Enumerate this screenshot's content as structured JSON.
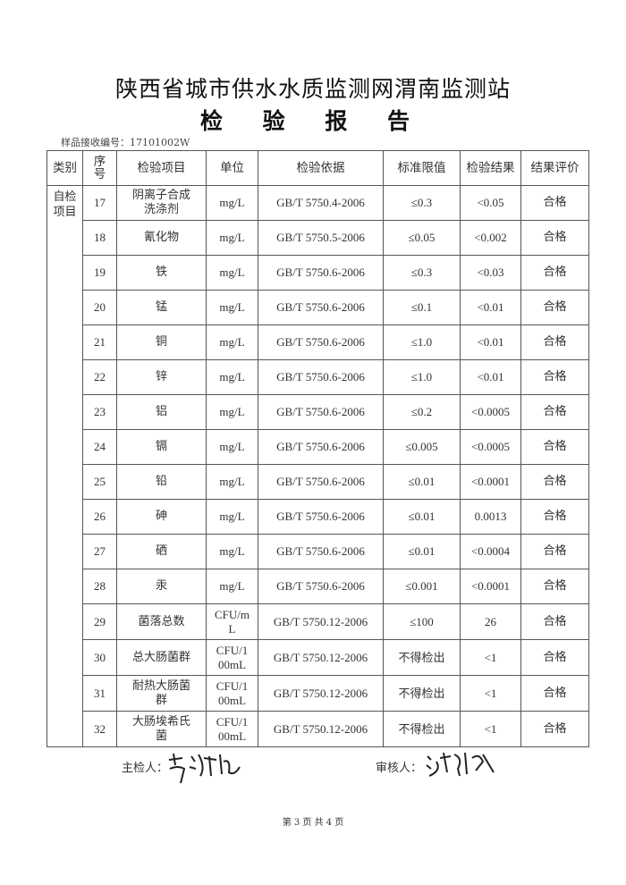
{
  "title": "陕西省城市供水水质监测网渭南监测站",
  "subtitle": "检 验 报 告",
  "sample_label": "样品接收编号：17101002W",
  "headers": [
    "类别",
    "序号",
    "检验项目",
    "单位",
    "检验依据",
    "标准限值",
    "检验结果",
    "结果评价"
  ],
  "category": "自检项目",
  "rows": [
    {
      "no": "17",
      "item": "阴离子合成洗涤剂",
      "unit": "mg/L",
      "method": "GB/T 5750.4-2006",
      "limit": "≤0.3",
      "result": "<0.05",
      "eval": "合格"
    },
    {
      "no": "18",
      "item": "氰化物",
      "unit": "mg/L",
      "method": "GB/T 5750.5-2006",
      "limit": "≤0.05",
      "result": "<0.002",
      "eval": "合格"
    },
    {
      "no": "19",
      "item": "铁",
      "unit": "mg/L",
      "method": "GB/T 5750.6-2006",
      "limit": "≤0.3",
      "result": "<0.03",
      "eval": "合格"
    },
    {
      "no": "20",
      "item": "锰",
      "unit": "mg/L",
      "method": "GB/T 5750.6-2006",
      "limit": "≤0.1",
      "result": "<0.01",
      "eval": "合格"
    },
    {
      "no": "21",
      "item": "铜",
      "unit": "mg/L",
      "method": "GB/T 5750.6-2006",
      "limit": "≤1.0",
      "result": "<0.01",
      "eval": "合格"
    },
    {
      "no": "22",
      "item": "锌",
      "unit": "mg/L",
      "method": "GB/T 5750.6-2006",
      "limit": "≤1.0",
      "result": "<0.01",
      "eval": "合格"
    },
    {
      "no": "23",
      "item": "铝",
      "unit": "mg/L",
      "method": "GB/T 5750.6-2006",
      "limit": "≤0.2",
      "result": "<0.0005",
      "eval": "合格"
    },
    {
      "no": "24",
      "item": "镉",
      "unit": "mg/L",
      "method": "GB/T 5750.6-2006",
      "limit": "≤0.005",
      "result": "<0.0005",
      "eval": "合格"
    },
    {
      "no": "25",
      "item": "铅",
      "unit": "mg/L",
      "method": "GB/T 5750.6-2006",
      "limit": "≤0.01",
      "result": "<0.0001",
      "eval": "合格"
    },
    {
      "no": "26",
      "item": "砷",
      "unit": "mg/L",
      "method": "GB/T 5750.6-2006",
      "limit": "≤0.01",
      "result": "0.0013",
      "eval": "合格"
    },
    {
      "no": "27",
      "item": "硒",
      "unit": "mg/L",
      "method": "GB/T 5750.6-2006",
      "limit": "≤0.01",
      "result": "<0.0004",
      "eval": "合格"
    },
    {
      "no": "28",
      "item": "汞",
      "unit": "mg/L",
      "method": "GB/T 5750.6-2006",
      "limit": "≤0.001",
      "result": "<0.0001",
      "eval": "合格"
    },
    {
      "no": "29",
      "item": "菌落总数",
      "unit": "CFU/mL",
      "method": "GB/T 5750.12-2006",
      "limit": "≤100",
      "result": "26",
      "eval": "合格"
    },
    {
      "no": "30",
      "item": "总大肠菌群",
      "unit": "CFU/100mL",
      "method": "GB/T 5750.12-2006",
      "limit": "不得检出",
      "result": "<1",
      "eval": "合格"
    },
    {
      "no": "31",
      "item": "耐热大肠菌群",
      "unit": "CFU/100mL",
      "method": "GB/T 5750.12-2006",
      "limit": "不得检出",
      "result": "<1",
      "eval": "合格"
    },
    {
      "no": "32",
      "item": "大肠埃希氏菌",
      "unit": "CFU/100mL",
      "method": "GB/T 5750.12-2006",
      "limit": "不得检出",
      "result": "<1",
      "eval": "合格"
    }
  ],
  "inspector_label": "主检人：",
  "reviewer_label": "审核人：",
  "footer": "第 3 页 共 4 页"
}
